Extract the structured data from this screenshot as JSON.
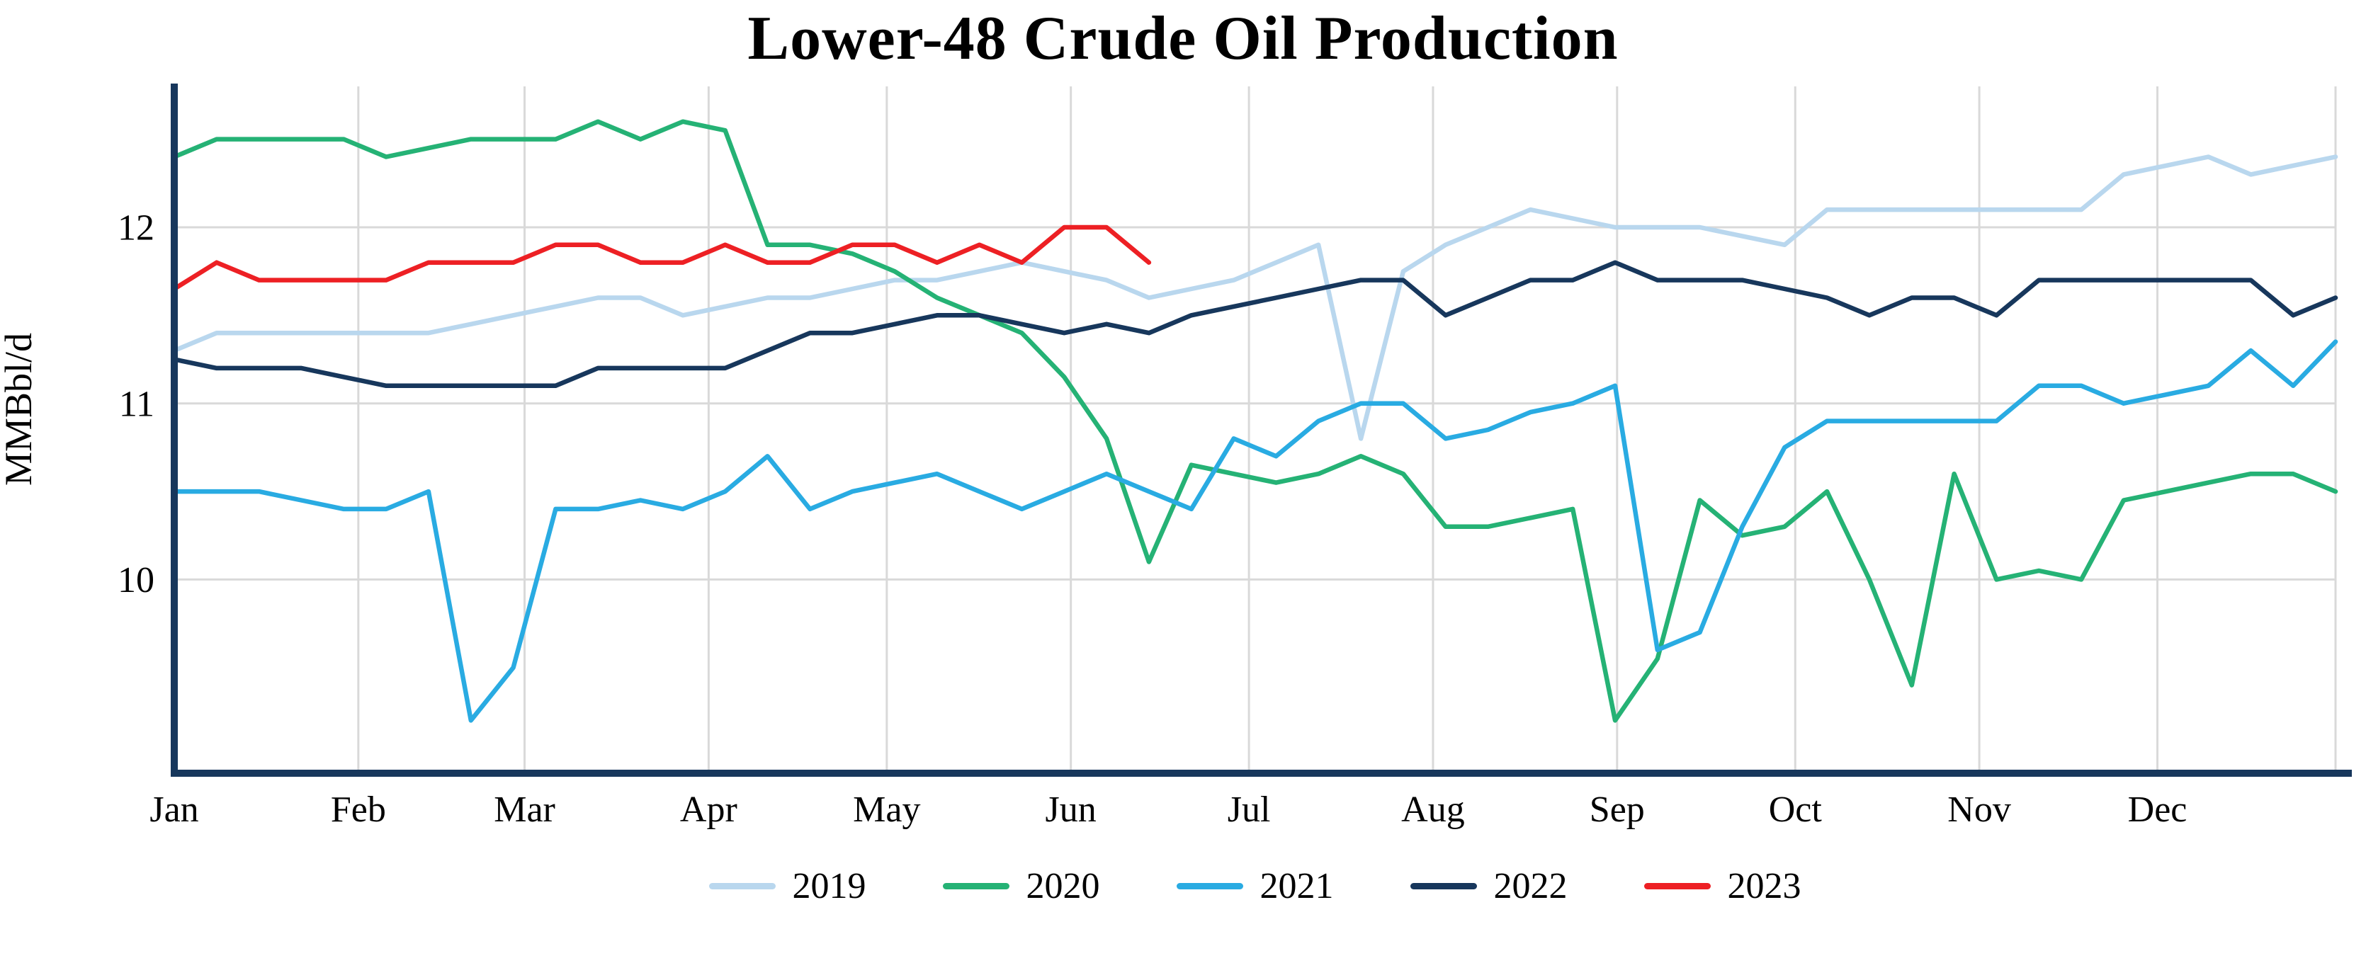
{
  "chart_data": {
    "type": "line",
    "title": "Lower-48 Crude Oil Production",
    "xlabel": "",
    "ylabel": "MMBbl/d",
    "ylim": [
      8.9,
      12.8
    ],
    "yticks": [
      10,
      11,
      12
    ],
    "grid": true,
    "legend_position": "bottom",
    "x_unit": "week of year",
    "weeks_per_year": 52,
    "months": [
      "Jan",
      "Feb",
      "Mar",
      "Apr",
      "May",
      "Jun",
      "Jul",
      "Aug",
      "Sep",
      "Oct",
      "Nov",
      "Dec"
    ],
    "month_start_days": [
      0,
      31,
      59,
      90,
      120,
      151,
      181,
      212,
      243,
      273,
      304,
      334
    ],
    "days_in_year": 364,
    "series": [
      {
        "name": "2019",
        "color": "#b9d7ee",
        "values": [
          11.3,
          11.4,
          11.4,
          11.4,
          11.4,
          11.4,
          11.4,
          11.45,
          11.5,
          11.55,
          11.6,
          11.6,
          11.5,
          11.55,
          11.6,
          11.6,
          11.65,
          11.7,
          11.7,
          11.75,
          11.8,
          11.75,
          11.7,
          11.6,
          11.65,
          11.7,
          11.8,
          11.9,
          10.8,
          11.75,
          11.9,
          12.0,
          12.1,
          12.05,
          12.0,
          12.0,
          12.0,
          11.95,
          11.9,
          12.1,
          12.1,
          12.1,
          12.1,
          12.1,
          12.1,
          12.1,
          12.3,
          12.35,
          12.4,
          12.3,
          12.35,
          12.4
        ]
      },
      {
        "name": "2020",
        "color": "#25b275",
        "values": [
          12.4,
          12.5,
          12.5,
          12.5,
          12.5,
          12.4,
          12.45,
          12.5,
          12.5,
          12.5,
          12.6,
          12.5,
          12.6,
          12.55,
          11.9,
          11.9,
          11.85,
          11.75,
          11.6,
          11.5,
          11.4,
          11.15,
          10.8,
          10.1,
          10.65,
          10.6,
          10.55,
          10.6,
          10.7,
          10.6,
          10.3,
          10.3,
          10.35,
          10.4,
          9.2,
          9.55,
          10.45,
          10.25,
          10.3,
          10.5,
          10.0,
          9.4,
          10.6,
          10.0,
          10.05,
          10.0,
          10.45,
          10.5,
          10.55,
          10.6,
          10.6,
          10.5
        ]
      },
      {
        "name": "2021",
        "color": "#29abe2",
        "values": [
          10.5,
          10.5,
          10.5,
          10.45,
          10.4,
          10.4,
          10.5,
          9.2,
          9.5,
          10.4,
          10.4,
          10.45,
          10.4,
          10.5,
          10.7,
          10.4,
          10.5,
          10.55,
          10.6,
          10.5,
          10.4,
          10.5,
          10.6,
          10.5,
          10.4,
          10.8,
          10.7,
          10.9,
          11.0,
          11.0,
          10.8,
          10.85,
          10.95,
          11.0,
          11.1,
          9.6,
          9.7,
          10.3,
          10.75,
          10.9,
          10.9,
          10.9,
          10.9,
          10.9,
          11.1,
          11.1,
          11.0,
          11.05,
          11.1,
          11.3,
          11.1,
          11.35
        ]
      },
      {
        "name": "2022",
        "color": "#17375c",
        "values": [
          11.25,
          11.2,
          11.2,
          11.2,
          11.15,
          11.1,
          11.1,
          11.1,
          11.1,
          11.1,
          11.2,
          11.2,
          11.2,
          11.2,
          11.3,
          11.4,
          11.4,
          11.45,
          11.5,
          11.5,
          11.45,
          11.4,
          11.45,
          11.4,
          11.5,
          11.55,
          11.6,
          11.65,
          11.7,
          11.7,
          11.5,
          11.6,
          11.7,
          11.7,
          11.8,
          11.7,
          11.7,
          11.7,
          11.65,
          11.6,
          11.5,
          11.6,
          11.6,
          11.5,
          11.7,
          11.7,
          11.7,
          11.7,
          11.7,
          11.7,
          11.5,
          11.6
        ]
      },
      {
        "name": "2023",
        "color": "#ed2024",
        "values": [
          11.65,
          11.8,
          11.7,
          11.7,
          11.7,
          11.7,
          11.8,
          11.8,
          11.8,
          11.9,
          11.9,
          11.8,
          11.8,
          11.9,
          11.8,
          11.8,
          11.9,
          11.9,
          11.8,
          11.9,
          11.8,
          12.0,
          12.0,
          11.8
        ]
      }
    ]
  },
  "style": {
    "axis_color": "#17375c",
    "grid_color": "#d9d9d9",
    "background": "#ffffff",
    "text_color": "#000000"
  }
}
